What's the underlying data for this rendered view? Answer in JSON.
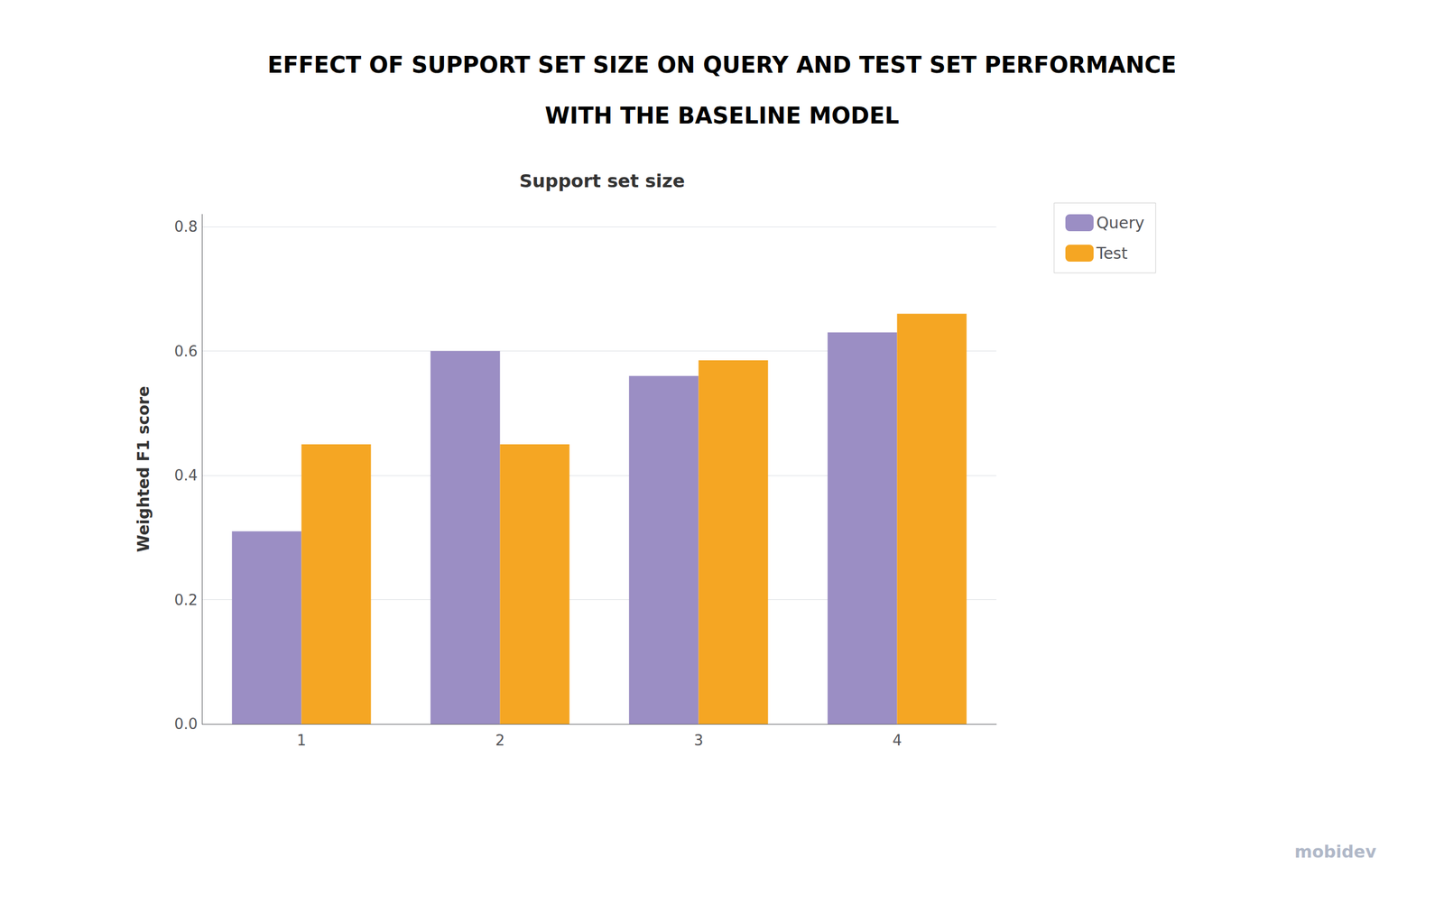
{
  "chart_data": {
    "type": "bar",
    "title": "EFFECT OF SUPPORT SET SIZE ON QUERY AND TEST SET PERFORMANCE",
    "subtitle": "WITH THE BASELINE MODEL",
    "annotations": [
      "Support set size",
      "mobidev"
    ],
    "ylabel": "Weighted F1 score",
    "categories": [
      1,
      2,
      3,
      4
    ],
    "series": [
      {
        "name": "Query",
        "color": "#9b8ec4",
        "values": [
          0.31,
          0.6,
          0.56,
          0.63
        ]
      },
      {
        "name": "Test",
        "color": "#f5a623",
        "values": [
          0.45,
          0.45,
          0.585,
          0.66
        ]
      }
    ],
    "ylim": [
      0.0,
      0.82
    ],
    "yticks": [
      {
        "value": 0.0,
        "label": "0.0"
      },
      0.2,
      0.4,
      0.6,
      0.8
    ],
    "grid": true,
    "legend": "right"
  }
}
